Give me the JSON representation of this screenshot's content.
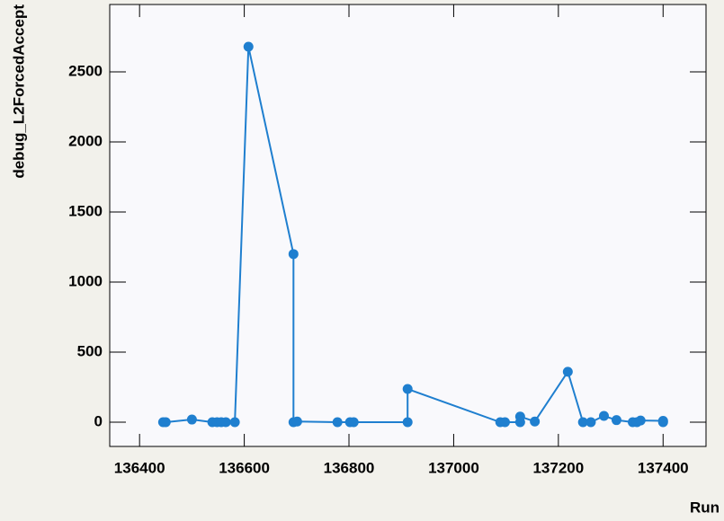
{
  "chart_data": {
    "type": "line",
    "x_label": "Run",
    "y_label": "debug_L2ForcedAccept",
    "color": "#1f7fcf",
    "x": [
      136445,
      136450,
      136500,
      136539,
      136548,
      136556,
      136565,
      136582,
      136608,
      136694,
      136694,
      136701,
      136778,
      136802,
      136809,
      136912,
      136912,
      137089,
      137098,
      137127,
      137127,
      137155,
      137218,
      137247,
      137262,
      137287,
      137311,
      137342,
      137350,
      137357,
      137400,
      137400
    ],
    "values": [
      0,
      0,
      19,
      0,
      0,
      0,
      0,
      0,
      2680,
      1200,
      0,
      5,
      0,
      0,
      0,
      0,
      237,
      0,
      0,
      0,
      40,
      5,
      360,
      0,
      0,
      45,
      15,
      0,
      0,
      12,
      10,
      0
    ],
    "xlim": [
      136343,
      137482
    ],
    "ylim": [
      -173,
      2981
    ],
    "xticks": [
      136400,
      136600,
      136800,
      137000,
      137200,
      137400
    ],
    "yticks": [
      0,
      500,
      1000,
      1500,
      2000,
      2500
    ]
  }
}
